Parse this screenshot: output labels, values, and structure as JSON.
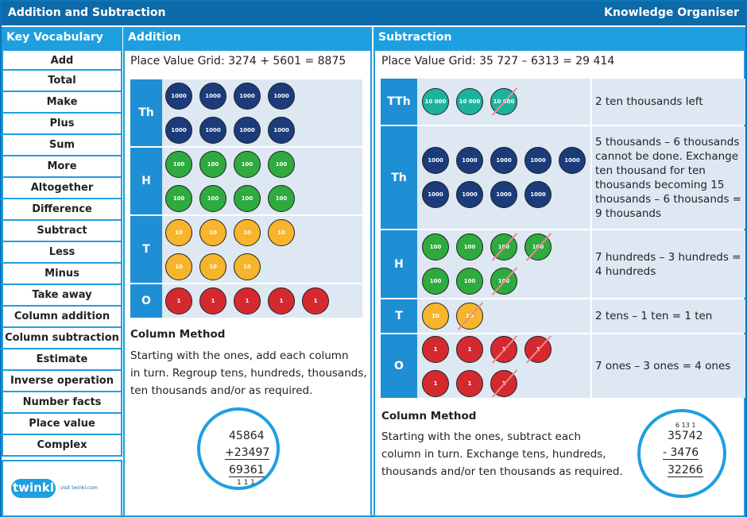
{
  "header": {
    "title": "Addition and Subtraction",
    "type": "Knowledge Organiser"
  },
  "vocab": {
    "heading": "Key Vocabulary",
    "items": [
      "Add",
      "Total",
      "Make",
      "Plus",
      "Sum",
      "More",
      "Altogether",
      "Difference",
      "Subtract",
      "Less",
      "Minus",
      "Take away",
      "Column addition",
      "Column subtraction",
      "Estimate",
      "Inverse operation",
      "Number facts",
      "Place value",
      "Complex"
    ]
  },
  "logo": {
    "name": "twinkl",
    "url": "visit twinkl.com"
  },
  "addition": {
    "heading": "Addition",
    "grid_title": "Place Value Grid: 3274 + 5601 = 8875",
    "rows": [
      {
        "label": "Th",
        "counter": "1000",
        "count": 8
      },
      {
        "label": "H",
        "counter": "100",
        "count": 8
      },
      {
        "label": "T",
        "counter": "10",
        "count": 7
      },
      {
        "label": "O",
        "counter": "1",
        "count": 5
      }
    ],
    "method_heading": "Column Method",
    "method_text": [
      "Starting with the ones, add each column",
      "in turn. Regroup tens, hundreds, thousands,",
      "ten thousands and/or as required."
    ],
    "calc": {
      "line1": "45864",
      "line2": "+23497",
      "result": "69361",
      "carry": "1 1 1"
    }
  },
  "subtraction": {
    "heading": "Subtraction",
    "grid_title": "Place Value Grid: 35 727 – 6313 = 29 414",
    "rows": [
      {
        "label": "TTh",
        "counter": "10 000",
        "count": 3,
        "crossed": 1,
        "text": "2 ten thousands left"
      },
      {
        "label": "Th",
        "counter": "1000",
        "count": 9,
        "crossed": 0,
        "text": "5 thousands – 6 thousands cannot be done. Exchange ten thousand for ten thousands becoming 15 thousands – 6 thousands = 9 thousands"
      },
      {
        "label": "H",
        "counter": "100",
        "count": 7,
        "crossed": 3,
        "text": "7 hundreds – 3 hundreds = 4 hundreds"
      },
      {
        "label": "T",
        "counter": "10",
        "count": 2,
        "crossed": 1,
        "text": "2 tens – 1 ten = 1 ten"
      },
      {
        "label": "O",
        "counter": "1",
        "count": 7,
        "crossed": 3,
        "text": "7 ones – 3 ones = 4 ones"
      }
    ],
    "method_heading": "Column Method",
    "method_text": [
      "Starting with the ones, subtract each",
      "column in turn. Exchange tens, hundreds,",
      "thousands and/or ten thousands as required."
    ],
    "calc": {
      "exchange": "6 13 1",
      "line1": "35742",
      "line2": "-  3476",
      "result": "32266"
    }
  },
  "colors": {
    "dark_blue": "#0d6aa8",
    "light_blue": "#1e9fe0",
    "grid_bg": "#dde8f3"
  }
}
